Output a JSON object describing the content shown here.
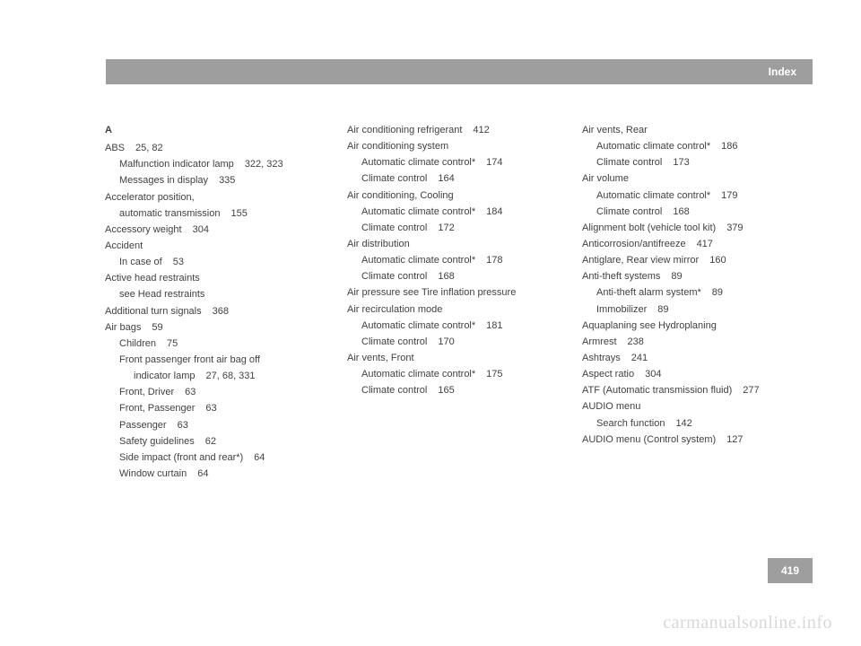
{
  "header": {
    "title": "Index"
  },
  "pageNumber": "419",
  "watermark": "carmanualsonline.info",
  "col1": [
    {
      "text": "A",
      "cls": "section-letter"
    },
    {
      "text": "ABS",
      "pg": "25, 82",
      "cls": "entry"
    },
    {
      "text": "Malfunction indicator lamp",
      "pg": "322, 323",
      "cls": "entry sub1"
    },
    {
      "text": "Messages in display",
      "pg": "335",
      "cls": "entry sub1"
    },
    {
      "text": "Accelerator position,",
      "cls": "entry"
    },
    {
      "text": "automatic transmission",
      "pg": "155",
      "cls": "entry sub1"
    },
    {
      "text": "Accessory weight",
      "pg": "304",
      "cls": "entry"
    },
    {
      "text": "Accident",
      "cls": "entry"
    },
    {
      "text": "In case of",
      "pg": "53",
      "cls": "entry sub1"
    },
    {
      "text": "Active head restraints",
      "cls": "entry"
    },
    {
      "text": "see Head restraints",
      "cls": "entry sub1"
    },
    {
      "text": "Additional turn signals",
      "pg": "368",
      "cls": "entry"
    },
    {
      "text": "Air bags",
      "pg": "59",
      "cls": "entry"
    },
    {
      "text": "Children",
      "pg": "75",
      "cls": "entry sub1"
    },
    {
      "text": "Front passenger front air bag off",
      "cls": "entry sub1"
    },
    {
      "text": "indicator lamp",
      "pg": "27, 68, 331",
      "cls": "entry sub2"
    },
    {
      "text": "Front, Driver",
      "pg": "63",
      "cls": "entry sub1"
    },
    {
      "text": "Front, Passenger",
      "pg": "63",
      "cls": "entry sub1"
    },
    {
      "text": "Passenger",
      "pg": "63",
      "cls": "entry sub1"
    },
    {
      "text": "Safety guidelines",
      "pg": "62",
      "cls": "entry sub1"
    },
    {
      "text": "Side impact (front and rear*)",
      "pg": "64",
      "cls": "entry sub1"
    },
    {
      "text": "Window curtain",
      "pg": "64",
      "cls": "entry sub1"
    }
  ],
  "col2": [
    {
      "text": "Air conditioning refrigerant",
      "pg": "412",
      "cls": "entry"
    },
    {
      "text": "Air conditioning system",
      "cls": "entry"
    },
    {
      "text": "Automatic climate control*",
      "pg": "174",
      "cls": "entry sub1"
    },
    {
      "text": "Climate control",
      "pg": "164",
      "cls": "entry sub1"
    },
    {
      "text": "Air conditioning, Cooling",
      "cls": "entry"
    },
    {
      "text": "Automatic climate control*",
      "pg": "184",
      "cls": "entry sub1"
    },
    {
      "text": "Climate control",
      "pg": "172",
      "cls": "entry sub1"
    },
    {
      "text": "Air distribution",
      "cls": "entry"
    },
    {
      "text": "Automatic climate control*",
      "pg": "178",
      "cls": "entry sub1"
    },
    {
      "text": "Climate control",
      "pg": "168",
      "cls": "entry sub1"
    },
    {
      "text": "Air pressure see Tire inflation pressure",
      "cls": "entry"
    },
    {
      "text": "Air recirculation mode",
      "cls": "entry"
    },
    {
      "text": "Automatic climate control*",
      "pg": "181",
      "cls": "entry sub1"
    },
    {
      "text": "Climate control",
      "pg": "170",
      "cls": "entry sub1"
    },
    {
      "text": "Air vents, Front",
      "cls": "entry"
    },
    {
      "text": "Automatic climate control*",
      "pg": "175",
      "cls": "entry sub1"
    },
    {
      "text": "Climate control",
      "pg": "165",
      "cls": "entry sub1"
    }
  ],
  "col3": [
    {
      "text": "Air vents, Rear",
      "cls": "entry"
    },
    {
      "text": "Automatic climate control*",
      "pg": "186",
      "cls": "entry sub1"
    },
    {
      "text": "Climate control",
      "pg": "173",
      "cls": "entry sub1"
    },
    {
      "text": "Air volume",
      "cls": "entry"
    },
    {
      "text": "Automatic climate control*",
      "pg": "179",
      "cls": "entry sub1"
    },
    {
      "text": "Climate control",
      "pg": "168",
      "cls": "entry sub1"
    },
    {
      "text": "Alignment bolt (vehicle tool kit)",
      "pg": "379",
      "cls": "entry"
    },
    {
      "text": "Anticorrosion/antifreeze",
      "pg": "417",
      "cls": "entry"
    },
    {
      "text": "Antiglare, Rear view mirror",
      "pg": "160",
      "cls": "entry"
    },
    {
      "text": "Anti-theft systems",
      "pg": "89",
      "cls": "entry"
    },
    {
      "text": "Anti-theft alarm system*",
      "pg": "89",
      "cls": "entry sub1"
    },
    {
      "text": "Immobilizer",
      "pg": "89",
      "cls": "entry sub1"
    },
    {
      "text": "Aquaplaning see Hydroplaning",
      "cls": "entry"
    },
    {
      "text": "Armrest",
      "pg": "238",
      "cls": "entry"
    },
    {
      "text": "Ashtrays",
      "pg": "241",
      "cls": "entry"
    },
    {
      "text": "Aspect ratio",
      "pg": "304",
      "cls": "entry"
    },
    {
      "text": "ATF (Automatic transmission fluid)",
      "pg": "277",
      "cls": "entry"
    },
    {
      "text": "AUDIO menu",
      "cls": "entry"
    },
    {
      "text": "Search function",
      "pg": "142",
      "cls": "entry sub1"
    },
    {
      "text": "AUDIO menu (Control system)",
      "pg": "127",
      "cls": "entry"
    }
  ]
}
